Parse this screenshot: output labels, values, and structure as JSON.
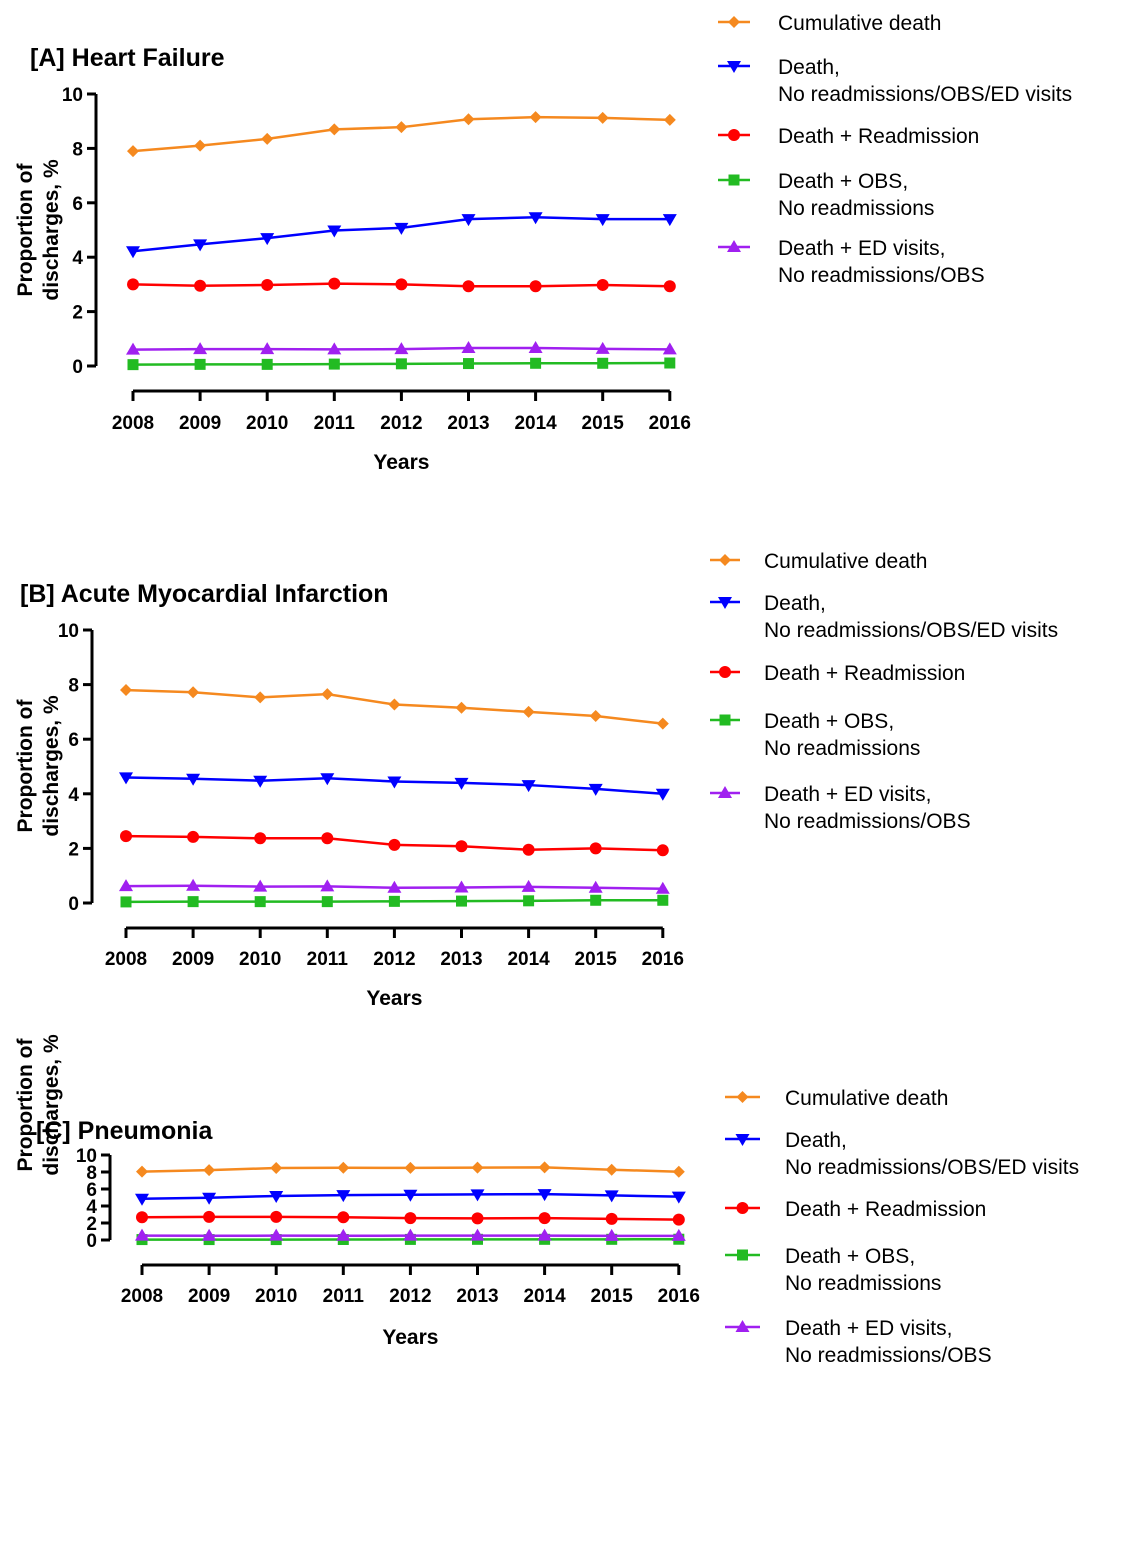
{
  "colors": {
    "cumulative": "#f5891f",
    "no_readm": "#0000ff",
    "readmission": "#ff0000",
    "obs": "#22bb22",
    "ed": "#a020f0"
  },
  "chart_data": [
    {
      "type": "line",
      "title": "[A] Heart Failure",
      "xlabel": "Years",
      "ylabel": [
        "Proportion of",
        "discharges, %"
      ],
      "ylim": [
        0,
        10
      ],
      "yticks": [
        "0",
        "2",
        "4",
        "6",
        "8",
        "10"
      ],
      "x": [
        "2008",
        "2009",
        "2010",
        "2011",
        "2012",
        "2013",
        "2014",
        "2015",
        "2016"
      ],
      "grid": false,
      "legend": "outside-right",
      "series": [
        {
          "name": [
            "Cumulative death"
          ],
          "marker": "diamond",
          "color": "#f5891f",
          "values": [
            7.9,
            8.1,
            8.35,
            8.7,
            8.78,
            9.07,
            9.15,
            9.12,
            9.05
          ]
        },
        {
          "name": [
            "Death,",
            "No readmissions/OBS/ED visits"
          ],
          "marker": "triangle-down",
          "color": "#0000ff",
          "values": [
            4.22,
            4.47,
            4.7,
            4.98,
            5.08,
            5.4,
            5.47,
            5.4,
            5.4
          ]
        },
        {
          "name": [
            "Death + Readmission"
          ],
          "marker": "circle",
          "color": "#ff0000",
          "values": [
            3.0,
            2.95,
            2.98,
            3.03,
            3.0,
            2.93,
            2.93,
            2.98,
            2.93
          ]
        },
        {
          "name": [
            "Death + OBS,",
            "No readmissions"
          ],
          "marker": "square",
          "color": "#22bb22",
          "values": [
            0.05,
            0.06,
            0.06,
            0.07,
            0.08,
            0.09,
            0.1,
            0.1,
            0.11
          ]
        },
        {
          "name": [
            "Death + ED visits,",
            "No readmissions/OBS"
          ],
          "marker": "triangle-up",
          "color": "#a020f0",
          "values": [
            0.6,
            0.62,
            0.62,
            0.61,
            0.62,
            0.66,
            0.66,
            0.63,
            0.61
          ]
        }
      ]
    },
    {
      "type": "line",
      "title": "[B] Acute Myocardial Infarction",
      "xlabel": "Years",
      "ylabel": [
        "Proportion of",
        "discharges, %"
      ],
      "ylim": [
        0,
        10
      ],
      "yticks": [
        "0",
        "2",
        "4",
        "6",
        "8",
        "10"
      ],
      "x": [
        "2008",
        "2009",
        "2010",
        "2011",
        "2012",
        "2013",
        "2014",
        "2015",
        "2016"
      ],
      "grid": false,
      "legend": "outside-right",
      "series": [
        {
          "name": [
            "Cumulative death"
          ],
          "marker": "diamond",
          "color": "#f5891f",
          "values": [
            7.8,
            7.72,
            7.53,
            7.65,
            7.27,
            7.15,
            7.0,
            6.85,
            6.57
          ]
        },
        {
          "name": [
            "Death,",
            "No readmissions/OBS/ED visits"
          ],
          "marker": "triangle-down",
          "color": "#0000ff",
          "values": [
            4.6,
            4.55,
            4.48,
            4.57,
            4.45,
            4.4,
            4.32,
            4.18,
            4.0
          ]
        },
        {
          "name": [
            "Death + Readmission"
          ],
          "marker": "circle",
          "color": "#ff0000",
          "values": [
            2.45,
            2.42,
            2.37,
            2.37,
            2.13,
            2.08,
            1.95,
            2.0,
            1.93
          ]
        },
        {
          "name": [
            "Death + OBS,",
            "No readmissions"
          ],
          "marker": "square",
          "color": "#22bb22",
          "values": [
            0.04,
            0.05,
            0.05,
            0.05,
            0.06,
            0.07,
            0.08,
            0.1,
            0.1
          ]
        },
        {
          "name": [
            "Death + ED visits,",
            "No readmissions/OBS"
          ],
          "marker": "triangle-up",
          "color": "#a020f0",
          "values": [
            0.62,
            0.63,
            0.6,
            0.61,
            0.56,
            0.57,
            0.59,
            0.56,
            0.52
          ]
        }
      ]
    },
    {
      "type": "line",
      "title": "[C] Pneumonia",
      "xlabel": "Years",
      "ylabel": [
        "Proportion of",
        "discharges, %"
      ],
      "ylim": [
        0,
        10
      ],
      "yticks": [
        "0",
        "2",
        "4",
        "6",
        "8",
        "10"
      ],
      "x": [
        "2008",
        "2009",
        "2010",
        "2011",
        "2012",
        "2013",
        "2014",
        "2015",
        "2016"
      ],
      "grid": false,
      "legend": "outside-right",
      "series": [
        {
          "name": [
            "Cumulative death"
          ],
          "marker": "diamond",
          "color": "#f5891f",
          "values": [
            8.05,
            8.22,
            8.47,
            8.5,
            8.48,
            8.52,
            8.55,
            8.27,
            8.03
          ]
        },
        {
          "name": [
            "Death,",
            "No readmissions/OBS/ED visits"
          ],
          "marker": "triangle-down",
          "color": "#0000ff",
          "values": [
            4.85,
            4.97,
            5.18,
            5.28,
            5.33,
            5.37,
            5.4,
            5.25,
            5.1
          ]
        },
        {
          "name": [
            "Death + Readmission"
          ],
          "marker": "circle",
          "color": "#ff0000",
          "values": [
            2.67,
            2.72,
            2.72,
            2.68,
            2.58,
            2.55,
            2.57,
            2.48,
            2.4
          ]
        },
        {
          "name": [
            "Death + OBS,",
            "No readmissions"
          ],
          "marker": "square",
          "color": "#22bb22",
          "values": [
            0.05,
            0.05,
            0.05,
            0.06,
            0.07,
            0.08,
            0.08,
            0.08,
            0.09
          ]
        },
        {
          "name": [
            "Death + ED visits,",
            "No readmissions/OBS"
          ],
          "marker": "triangle-up",
          "color": "#a020f0",
          "values": [
            0.51,
            0.5,
            0.51,
            0.5,
            0.51,
            0.52,
            0.51,
            0.49,
            0.48
          ]
        }
      ]
    }
  ]
}
